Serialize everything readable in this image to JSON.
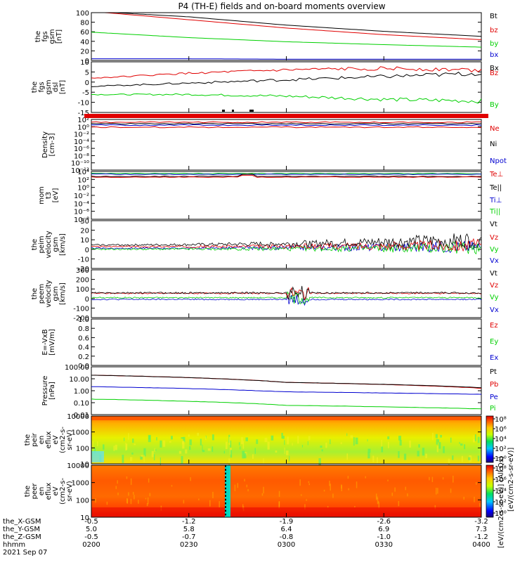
{
  "title": "P4 (TH-E) fields and on-board moments overview",
  "date_label": "2021 Sep 07",
  "colors": {
    "black": "#000000",
    "red": "#e00000",
    "green": "#00d000",
    "blue": "#0000d0"
  },
  "ephemeris": {
    "rows": [
      {
        "label": "the_X-GSM",
        "values": [
          "-0.5",
          "-1.2",
          "-1.9",
          "-2.6",
          "-3.2"
        ]
      },
      {
        "label": "the_Y-GSM",
        "values": [
          "5.0",
          "5.8",
          "6.4",
          "6.9",
          "7.3"
        ]
      },
      {
        "label": "the_Z-GSM",
        "values": [
          "-0.5",
          "-0.7",
          "-0.8",
          "-1.0",
          "-1.2"
        ]
      },
      {
        "label": "hhmm",
        "values": [
          "0200",
          "0230",
          "0300",
          "0330",
          "0400"
        ]
      }
    ]
  },
  "chart_data": [
    {
      "type": "line",
      "id": "fgs_gsm",
      "ylabel": [
        "the",
        "fgs",
        "gsm",
        "[nT]"
      ],
      "yticks": [
        "0",
        "20",
        "40",
        "60",
        "80",
        "100"
      ],
      "ylim": [
        -10,
        105
      ],
      "series": [
        {
          "name": "Bt",
          "color": "black",
          "x": [
            0,
            0.25,
            0.5,
            0.75,
            1
          ],
          "values": [
            108,
            95,
            75,
            60,
            48
          ]
        },
        {
          "name": "bz",
          "color": "red",
          "x": [
            0,
            0.25,
            0.5,
            0.75,
            1
          ],
          "values": [
            108,
            88,
            68,
            52,
            40
          ]
        },
        {
          "name": "by",
          "color": "green",
          "x": [
            0,
            0.25,
            0.5,
            0.75,
            1
          ],
          "values": [
            58,
            45,
            35,
            28,
            22
          ]
        },
        {
          "name": "bx",
          "color": "blue",
          "x": [
            0,
            0.25,
            0.5,
            0.75,
            1
          ],
          "values": [
            -6,
            -6,
            -7,
            -7,
            -7
          ]
        }
      ]
    },
    {
      "type": "line",
      "id": "fgs_dsl",
      "ylabel": [
        "the",
        "fgs",
        "gsm",
        "dsl",
        "[nT]"
      ],
      "yticks": [
        "-15",
        "-10",
        "-5",
        "0",
        "5",
        "10"
      ],
      "ylim": [
        -18,
        13
      ],
      "series": [
        {
          "name": "Bx",
          "color": "black",
          "x": [
            0,
            0.25,
            0.5,
            0.75,
            1
          ],
          "values": [
            -2,
            0,
            2,
            4,
            6
          ]
        },
        {
          "name": "Bz",
          "color": "red",
          "x": [
            0,
            0.25,
            0.5,
            0.75,
            1
          ],
          "values": [
            3,
            6,
            8,
            9,
            8
          ]
        },
        {
          "name": "By",
          "color": "green",
          "x": [
            0,
            0.25,
            0.5,
            0.75,
            1
          ],
          "values": [
            -7,
            -7,
            -8,
            -10,
            -11
          ]
        }
      ]
    },
    {
      "type": "line",
      "id": "density",
      "ylabel": [
        "Density",
        "[cm-3]"
      ],
      "yticks": [
        "10⁻¹²",
        "10⁻¹⁰",
        "10⁻⁸",
        "10⁻⁶",
        "10⁻⁴",
        "10⁻²",
        "10⁰",
        "10²"
      ],
      "series": [
        {
          "name": "Ne",
          "color": "red",
          "x": [
            0,
            1
          ],
          "values": [
            1,
            1
          ]
        },
        {
          "name": "Ni",
          "color": "black",
          "x": [
            0,
            1
          ],
          "values": [
            3,
            3
          ]
        },
        {
          "name": "Npot",
          "color": "blue",
          "x": [
            0,
            1
          ],
          "values": [
            0.5,
            0.5
          ]
        }
      ]
    },
    {
      "type": "line",
      "id": "moments_temp",
      "ylabel": [
        "mom",
        "t3",
        "[eV]"
      ],
      "yticks": [
        "10⁻⁸",
        "10⁻⁶",
        "10⁻⁴",
        "10⁻²",
        "10⁰",
        "10²",
        "10⁴"
      ],
      "series": [
        {
          "name": "Te⊥",
          "color": "red"
        },
        {
          "name": "Te||",
          "color": "black"
        },
        {
          "name": "Ti⊥",
          "color": "blue"
        },
        {
          "name": "Ti||",
          "color": "green"
        }
      ]
    },
    {
      "type": "line",
      "id": "peim_velocity",
      "ylabel": [
        "the",
        "peim",
        "velocity",
        "gsm",
        "[km/s]"
      ],
      "yticks": [
        "-20",
        "-10",
        "0",
        "10",
        "20",
        "30"
      ],
      "ylim": [
        -25,
        32
      ],
      "series": [
        {
          "name": "Vt",
          "color": "black"
        },
        {
          "name": "Vz",
          "color": "red"
        },
        {
          "name": "Vy",
          "color": "green"
        },
        {
          "name": "Vx",
          "color": "blue"
        }
      ]
    },
    {
      "type": "line",
      "id": "peem_velocity",
      "ylabel": [
        "the",
        "peem",
        "velocity",
        "gsm",
        "[km/s]"
      ],
      "yticks": [
        "-200",
        "-100",
        "0",
        "100",
        "200",
        "300"
      ],
      "ylim": [
        -230,
        320
      ],
      "series": [
        {
          "name": "Vt",
          "color": "black"
        },
        {
          "name": "Vz",
          "color": "red"
        },
        {
          "name": "Vy",
          "color": "green"
        },
        {
          "name": "Vx",
          "color": "blue"
        }
      ]
    },
    {
      "type": "line",
      "id": "e_field",
      "ylabel": [
        "E=-VxB",
        "[mV/m]"
      ],
      "yticks": [
        "0.0",
        "0.2",
        "0.4",
        "0.6",
        "0.8",
        "1.0"
      ],
      "ylim": [
        0,
        1
      ],
      "series": [
        {
          "name": "Ez",
          "color": "red"
        },
        {
          "name": "Ey",
          "color": "green"
        },
        {
          "name": "Ex",
          "color": "blue"
        }
      ]
    },
    {
      "type": "line",
      "id": "pressure",
      "ylabel": [
        "Pressure",
        "[nPa]"
      ],
      "yticks": [
        "0.01",
        "0.10",
        "1.00",
        "10.00",
        "100.00"
      ],
      "series": [
        {
          "name": "Pt",
          "color": "black",
          "x": [
            0,
            0.5,
            1
          ],
          "values": [
            20,
            5,
            1.8
          ]
        },
        {
          "name": "Pb",
          "color": "red",
          "x": [
            0,
            0.5,
            1
          ],
          "values": [
            20,
            5,
            1.6
          ]
        },
        {
          "name": "Pe",
          "color": "blue",
          "x": [
            0,
            0.5,
            1
          ],
          "values": [
            2.2,
            0.8,
            0.5
          ]
        },
        {
          "name": "Pi",
          "color": "green",
          "x": [
            0,
            0.5,
            1
          ],
          "values": [
            0.2,
            0.06,
            0.03
          ]
        }
      ]
    },
    {
      "type": "heatmap",
      "id": "peir_eflux",
      "ylabel": [
        "the",
        "peir",
        "en",
        "eflux",
        "eV",
        "(cm2-s-",
        "sr-eV)"
      ],
      "yticks": [
        "10",
        "100",
        "1000",
        "10000"
      ]
    },
    {
      "type": "heatmap",
      "id": "peer_eflux",
      "ylabel": [
        "the",
        "peer",
        "en",
        "eflux",
        "eV",
        "(cm2-s-",
        "sr-eV)"
      ],
      "yticks": [
        "10",
        "100",
        "1000",
        "10000"
      ]
    }
  ],
  "colorbar": {
    "ticks": [
      "10⁰",
      "10²",
      "10⁴",
      "10⁶",
      "10⁸"
    ],
    "label": "[eV/(cm2-s-sr-eV)] (All Qs)",
    "label2": "[eV/(cm2-s-sr-eV)]"
  }
}
